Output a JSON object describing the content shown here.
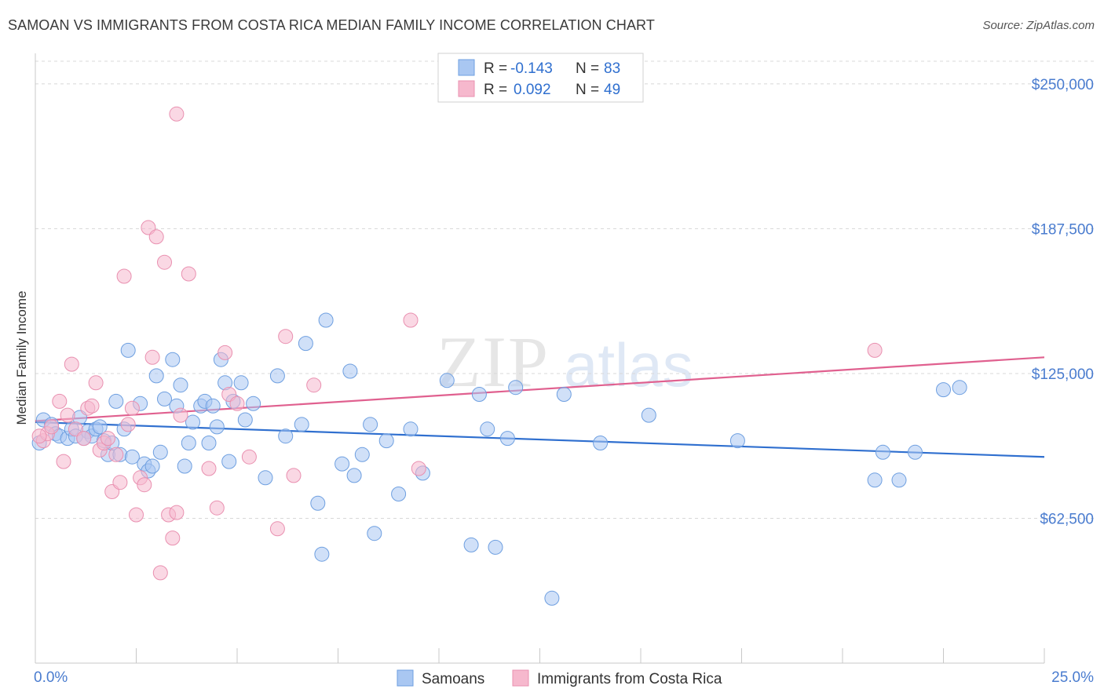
{
  "header": {
    "title": "SAMOAN VS IMMIGRANTS FROM COSTA RICA MEDIAN FAMILY INCOME CORRELATION CHART",
    "source": "Source: ZipAtlas.com"
  },
  "watermark": {
    "zip": "ZIP",
    "atlas": "atlas"
  },
  "colors": {
    "blue_fill": "#a9c7f2",
    "blue_stroke": "#6e9fe0",
    "blue_line": "#2f6fcf",
    "pink_fill": "#f6b8cd",
    "pink_stroke": "#e990b0",
    "pink_line": "#e0608f",
    "axis_text": "#4a7ccf",
    "grid": "#d8d8d8"
  },
  "legend": {
    "rows": [
      {
        "r_label": "R = ",
        "r_value": "-0.143",
        "n_label": "N = ",
        "n_value": "83"
      },
      {
        "r_label": "R = ",
        "r_value": "0.092",
        "n_label": "N = ",
        "n_value": "49"
      }
    ]
  },
  "chart_data": {
    "type": "scatter",
    "title": "SAMOAN VS IMMIGRANTS FROM COSTA RICA MEDIAN FAMILY INCOME CORRELATION CHART",
    "xlabel": "",
    "ylabel": "Median Family Income",
    "xlim": [
      0,
      25
    ],
    "ylim": [
      0,
      262500
    ],
    "x_tick_labels": [
      "0.0%",
      "25.0%"
    ],
    "y_ticks": [
      62500,
      125000,
      187500,
      250000
    ],
    "y_tick_labels": [
      "$62,500",
      "$125,000",
      "$187,500",
      "$250,000"
    ],
    "grid": true,
    "legend_position": "top-center",
    "series": [
      {
        "name": "Samoans",
        "color": "blue",
        "r": -0.143,
        "n": 83,
        "trend": {
          "x": [
            0,
            25
          ],
          "y": [
            104000,
            89000
          ]
        },
        "points": [
          [
            0.2,
            105000
          ],
          [
            0.4,
            103000
          ],
          [
            0.5,
            99000
          ],
          [
            0.6,
            98000
          ],
          [
            0.8,
            97000
          ],
          [
            0.9,
            101000
          ],
          [
            1.0,
            98000
          ],
          [
            1.1,
            106000
          ],
          [
            1.3,
            100000
          ],
          [
            1.4,
            98000
          ],
          [
            1.5,
            101000
          ],
          [
            1.6,
            102000
          ],
          [
            1.7,
            96000
          ],
          [
            1.8,
            90000
          ],
          [
            1.9,
            95000
          ],
          [
            2.0,
            113000
          ],
          [
            2.1,
            90000
          ],
          [
            2.2,
            101000
          ],
          [
            2.3,
            135000
          ],
          [
            2.4,
            89000
          ],
          [
            2.6,
            112000
          ],
          [
            2.7,
            86000
          ],
          [
            2.8,
            83000
          ],
          [
            2.9,
            85000
          ],
          [
            3.0,
            124000
          ],
          [
            3.1,
            91000
          ],
          [
            3.2,
            114000
          ],
          [
            3.4,
            131000
          ],
          [
            3.5,
            111000
          ],
          [
            3.6,
            120000
          ],
          [
            3.7,
            85000
          ],
          [
            3.8,
            95000
          ],
          [
            3.9,
            104000
          ],
          [
            4.1,
            111000
          ],
          [
            4.2,
            113000
          ],
          [
            4.3,
            95000
          ],
          [
            4.4,
            111000
          ],
          [
            4.5,
            102000
          ],
          [
            4.6,
            131000
          ],
          [
            4.7,
            121000
          ],
          [
            4.8,
            87000
          ],
          [
            4.9,
            113000
          ],
          [
            5.1,
            121000
          ],
          [
            5.2,
            105000
          ],
          [
            5.4,
            112000
          ],
          [
            5.7,
            80000
          ],
          [
            6.0,
            124000
          ],
          [
            6.2,
            98000
          ],
          [
            6.6,
            103000
          ],
          [
            6.7,
            138000
          ],
          [
            7.0,
            69000
          ],
          [
            7.1,
            47000
          ],
          [
            7.2,
            148000
          ],
          [
            7.6,
            86000
          ],
          [
            7.8,
            126000
          ],
          [
            7.9,
            81000
          ],
          [
            8.1,
            90000
          ],
          [
            8.3,
            103000
          ],
          [
            8.4,
            56000
          ],
          [
            8.7,
            96000
          ],
          [
            9.0,
            73000
          ],
          [
            9.3,
            101000
          ],
          [
            9.6,
            82000
          ],
          [
            10.2,
            122000
          ],
          [
            10.8,
            51000
          ],
          [
            11.0,
            116000
          ],
          [
            11.2,
            101000
          ],
          [
            11.4,
            50000
          ],
          [
            11.7,
            97000
          ],
          [
            11.9,
            119000
          ],
          [
            12.8,
            28000
          ],
          [
            13.1,
            116000
          ],
          [
            14.0,
            95000
          ],
          [
            15.2,
            107000
          ],
          [
            17.4,
            96000
          ],
          [
            20.8,
            79000
          ],
          [
            21.0,
            91000
          ],
          [
            21.4,
            79000
          ],
          [
            21.8,
            91000
          ],
          [
            22.5,
            118000
          ],
          [
            22.9,
            119000
          ],
          [
            0.1,
            95000
          ],
          [
            1.2,
            97000
          ]
        ]
      },
      {
        "name": "Immigrants from Costa Rica",
        "color": "pink",
        "r": 0.092,
        "n": 49,
        "trend": {
          "x": [
            0,
            25
          ],
          "y": [
            104500,
            132000
          ]
        },
        "points": [
          [
            0.2,
            96000
          ],
          [
            0.3,
            99000
          ],
          [
            0.4,
            102000
          ],
          [
            0.6,
            113000
          ],
          [
            0.7,
            87000
          ],
          [
            0.8,
            107000
          ],
          [
            0.9,
            129000
          ],
          [
            1.0,
            101000
          ],
          [
            1.2,
            97000
          ],
          [
            1.3,
            110000
          ],
          [
            1.4,
            111000
          ],
          [
            1.5,
            121000
          ],
          [
            1.6,
            92000
          ],
          [
            1.7,
            95000
          ],
          [
            1.8,
            97000
          ],
          [
            1.9,
            74000
          ],
          [
            2.0,
            90000
          ],
          [
            2.1,
            78000
          ],
          [
            2.2,
            167000
          ],
          [
            2.3,
            103000
          ],
          [
            2.4,
            110000
          ],
          [
            2.5,
            64000
          ],
          [
            2.6,
            80000
          ],
          [
            2.7,
            77000
          ],
          [
            2.8,
            188000
          ],
          [
            2.9,
            132000
          ],
          [
            3.0,
            184000
          ],
          [
            3.1,
            39000
          ],
          [
            3.2,
            173000
          ],
          [
            3.3,
            64000
          ],
          [
            3.4,
            54000
          ],
          [
            3.5,
            65000
          ],
          [
            3.6,
            107000
          ],
          [
            3.8,
            168000
          ],
          [
            4.3,
            84000
          ],
          [
            4.5,
            67000
          ],
          [
            4.7,
            134000
          ],
          [
            4.8,
            116000
          ],
          [
            5.0,
            112000
          ],
          [
            5.3,
            89000
          ],
          [
            6.0,
            58000
          ],
          [
            6.2,
            141000
          ],
          [
            6.4,
            81000
          ],
          [
            6.9,
            120000
          ],
          [
            9.3,
            148000
          ],
          [
            9.5,
            84000
          ],
          [
            20.8,
            135000
          ],
          [
            0.1,
            98000
          ],
          [
            3.5,
            237000
          ]
        ]
      }
    ]
  },
  "bottom_legend": {
    "items": [
      {
        "label": "Samoans"
      },
      {
        "label": "Immigrants from Costa Rica"
      }
    ]
  }
}
